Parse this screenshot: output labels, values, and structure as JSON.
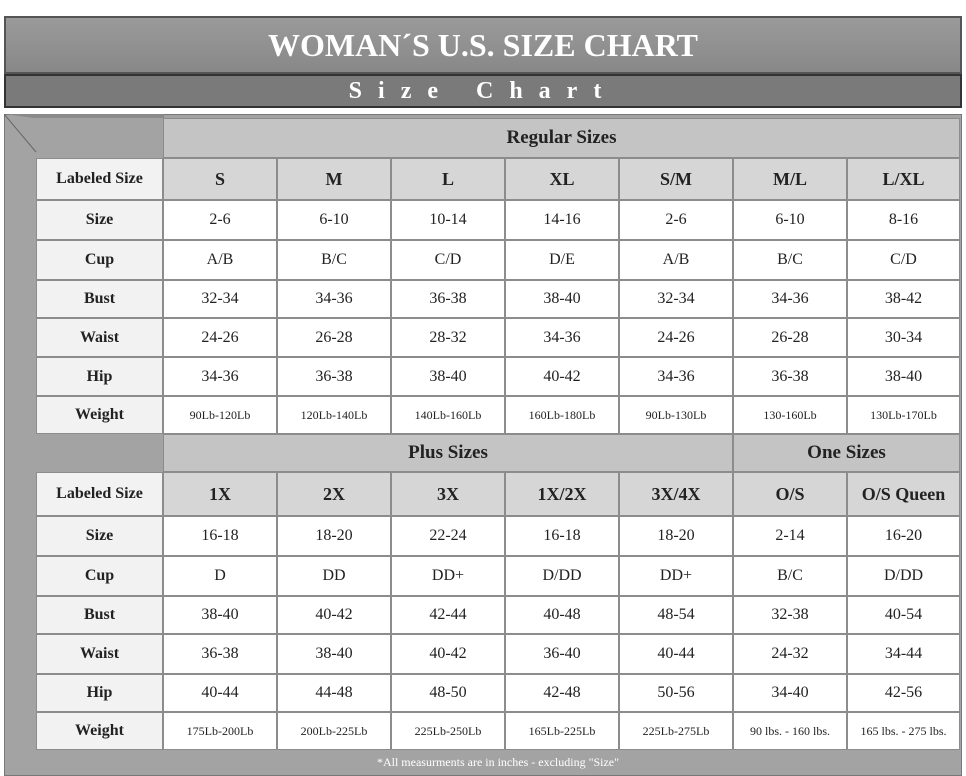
{
  "header": {
    "title": "WOMAN´S U.S. SIZE CHART",
    "subtitle": "Size Chart"
  },
  "regular": {
    "title": "Regular Sizes",
    "header": [
      "Labeled Size",
      "S",
      "M",
      "L",
      "XL",
      "S/M",
      "M/L",
      "L/XL"
    ],
    "rows": [
      [
        "Size",
        "2-6",
        "6-10",
        "10-14",
        "14-16",
        "2-6",
        "6-10",
        "8-16"
      ],
      [
        "Cup",
        "A/B",
        "B/C",
        "C/D",
        "D/E",
        "A/B",
        "B/C",
        "C/D"
      ],
      [
        "Bust",
        "32-34",
        "34-36",
        "36-38",
        "38-40",
        "32-34",
        "34-36",
        "38-42"
      ],
      [
        "Waist",
        "24-26",
        "26-28",
        "28-32",
        "34-36",
        "24-26",
        "26-28",
        "30-34"
      ],
      [
        "Hip",
        "34-36",
        "36-38",
        "38-40",
        "40-42",
        "34-36",
        "36-38",
        "38-40"
      ],
      [
        "Weight",
        "90Lb-120Lb",
        "120Lb-140Lb",
        "140Lb-160Lb",
        "160Lb-180Lb",
        "90Lb-130Lb",
        "130-160Lb",
        "130Lb-170Lb"
      ]
    ]
  },
  "plus": {
    "titles": [
      "Plus Sizes",
      "One Sizes"
    ],
    "header": [
      "Labeled Size",
      "1X",
      "2X",
      "3X",
      "1X/2X",
      "3X/4X",
      "O/S",
      "O/S Queen"
    ],
    "rows": [
      [
        "Size",
        "16-18",
        "18-20",
        "22-24",
        "16-18",
        "18-20",
        "2-14",
        "16-20"
      ],
      [
        "Cup",
        "D",
        "DD",
        "DD+",
        "D/DD",
        "DD+",
        "B/C",
        "D/DD"
      ],
      [
        "Bust",
        "38-40",
        "40-42",
        "42-44",
        "40-48",
        "48-54",
        "32-38",
        "40-54"
      ],
      [
        "Waist",
        "36-38",
        "38-40",
        "40-42",
        "36-40",
        "40-44",
        "24-32",
        "34-44"
      ],
      [
        "Hip",
        "40-44",
        "44-48",
        "48-50",
        "42-48",
        "50-56",
        "34-40",
        "42-56"
      ],
      [
        "Weight",
        "175Lb-200Lb",
        "200Lb-225Lb",
        "225Lb-250Lb",
        "165Lb-225Lb",
        "225Lb-275Lb",
        "90 lbs. - 160 lbs.",
        "165 lbs. - 275 lbs."
      ]
    ]
  },
  "footnote": "*All measurments are in inches - excluding \"Size\""
}
